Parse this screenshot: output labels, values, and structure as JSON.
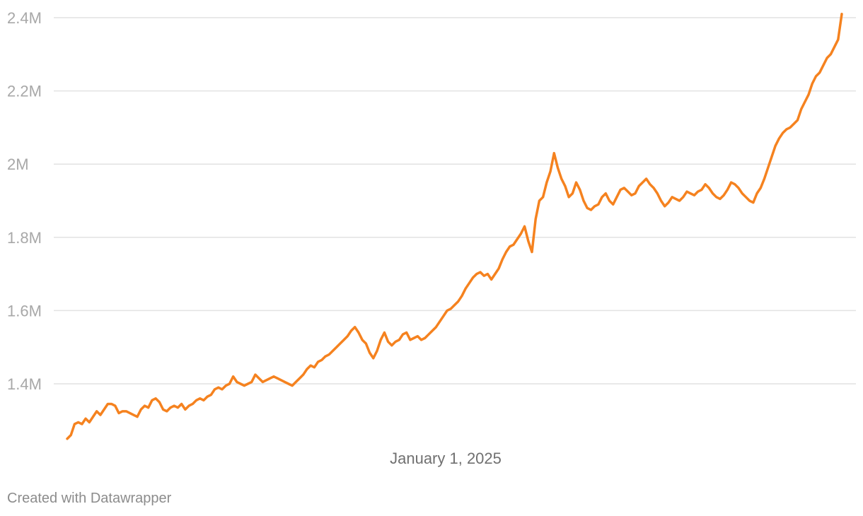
{
  "chart_data": {
    "type": "line",
    "title": "",
    "xlabel": "",
    "ylabel": "",
    "y_tick_labels": [
      "1.4M",
      "1.6M",
      "1.8M",
      "2M",
      "2.2M",
      "2.4M"
    ],
    "y_ticks": [
      1400000,
      1600000,
      1800000,
      2000000,
      2200000,
      2400000
    ],
    "x_tick_labels": [
      "January 1, 2025"
    ],
    "ylim": [
      1200000,
      2400000
    ],
    "grid": true,
    "line_color": "#f5821f",
    "series": [
      {
        "values": [
          1250000,
          1260000,
          1290000,
          1295000,
          1290000,
          1305000,
          1295000,
          1310000,
          1325000,
          1315000,
          1330000,
          1345000,
          1345000,
          1340000,
          1320000,
          1325000,
          1325000,
          1320000,
          1315000,
          1310000,
          1330000,
          1340000,
          1335000,
          1355000,
          1360000,
          1350000,
          1330000,
          1325000,
          1335000,
          1340000,
          1335000,
          1345000,
          1330000,
          1340000,
          1345000,
          1355000,
          1360000,
          1355000,
          1365000,
          1370000,
          1385000,
          1390000,
          1385000,
          1395000,
          1400000,
          1420000,
          1405000,
          1400000,
          1395000,
          1400000,
          1405000,
          1425000,
          1415000,
          1405000,
          1410000,
          1415000,
          1420000,
          1415000,
          1410000,
          1405000,
          1400000,
          1395000,
          1405000,
          1415000,
          1425000,
          1440000,
          1450000,
          1445000,
          1460000,
          1465000,
          1475000,
          1480000,
          1490000,
          1500000,
          1510000,
          1520000,
          1530000,
          1545000,
          1555000,
          1540000,
          1520000,
          1510000,
          1485000,
          1470000,
          1490000,
          1520000,
          1540000,
          1515000,
          1505000,
          1515000,
          1520000,
          1535000,
          1540000,
          1520000,
          1525000,
          1530000,
          1520000,
          1525000,
          1535000,
          1545000,
          1555000,
          1570000,
          1585000,
          1600000,
          1605000,
          1615000,
          1625000,
          1640000,
          1660000,
          1675000,
          1690000,
          1700000,
          1705000,
          1695000,
          1700000,
          1685000,
          1700000,
          1715000,
          1740000,
          1760000,
          1775000,
          1780000,
          1795000,
          1810000,
          1830000,
          1790000,
          1760000,
          1850000,
          1900000,
          1910000,
          1950000,
          1980000,
          2030000,
          1990000,
          1960000,
          1940000,
          1910000,
          1920000,
          1950000,
          1930000,
          1900000,
          1880000,
          1875000,
          1885000,
          1890000,
          1910000,
          1920000,
          1900000,
          1890000,
          1910000,
          1930000,
          1935000,
          1925000,
          1915000,
          1920000,
          1940000,
          1950000,
          1960000,
          1945000,
          1935000,
          1920000,
          1900000,
          1885000,
          1895000,
          1910000,
          1905000,
          1900000,
          1910000,
          1925000,
          1920000,
          1915000,
          1925000,
          1930000,
          1945000,
          1935000,
          1920000,
          1910000,
          1905000,
          1915000,
          1930000,
          1950000,
          1945000,
          1935000,
          1920000,
          1910000,
          1900000,
          1895000,
          1920000,
          1935000,
          1960000,
          1990000,
          2020000,
          2050000,
          2070000,
          2085000,
          2095000,
          2100000,
          2110000,
          2120000,
          2150000,
          2170000,
          2190000,
          2220000,
          2240000,
          2250000,
          2270000,
          2290000,
          2300000,
          2320000,
          2340000,
          2410000
        ]
      }
    ]
  },
  "footer": {
    "credit": "Created with Datawrapper"
  }
}
